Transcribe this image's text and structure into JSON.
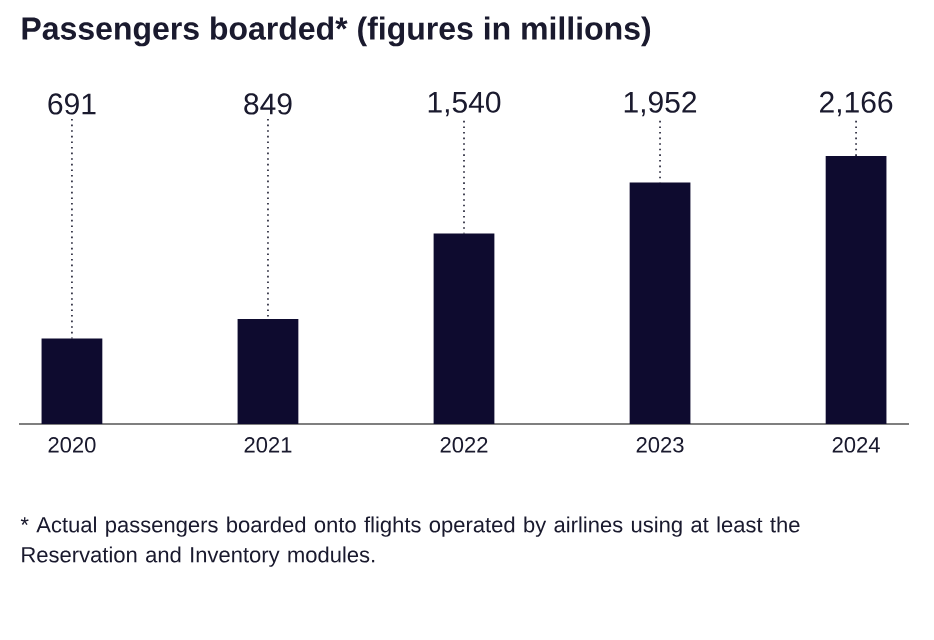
{
  "chart_data": {
    "type": "bar",
    "title": "Passengers boarded* (figures in millions)",
    "categories": [
      "2020",
      "2021",
      "2022",
      "2023",
      "2024"
    ],
    "values": [
      691,
      849,
      1540,
      1952,
      2166
    ],
    "value_labels": [
      "691",
      "849",
      "1,540",
      "1,952",
      "2,166"
    ],
    "color": "#0e0b2f",
    "annotations": [
      "* Actual passengers boarded onto flights operated by airlines using at least the Reservation and Inventory modules."
    ]
  }
}
